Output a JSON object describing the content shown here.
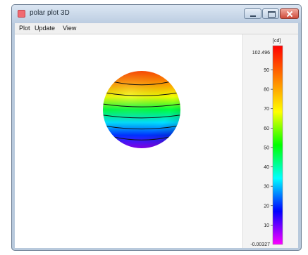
{
  "window": {
    "title": "polar plot 3D"
  },
  "menubar": {
    "items": [
      "Plot",
      "Update",
      "View"
    ]
  },
  "colorbar": {
    "unit": "[cd]",
    "max_label": "102.496",
    "min_label": "-0.00327",
    "ticks": [
      90,
      80,
      70,
      60,
      50,
      40,
      30,
      20,
      10
    ],
    "range": [
      -0.00327,
      102.496
    ],
    "colormap": [
      "#ff0000",
      "#ff8000",
      "#ffff00",
      "#00ff00",
      "#00ffff",
      "#0000ff",
      "#ff00ff"
    ]
  },
  "sphere": {
    "contour_levels": 6,
    "gradient": [
      "#ff4500",
      "#ff9a00",
      "#f0ff00",
      "#00ff40",
      "#00e0ff",
      "#0030ff",
      "#9000ff"
    ]
  }
}
